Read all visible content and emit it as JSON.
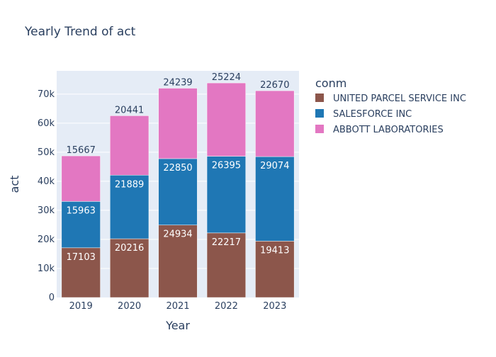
{
  "chart_data": {
    "type": "bar",
    "stacked": true,
    "title": "Yearly Trend of act",
    "xlabel": "Year",
    "ylabel": "act",
    "categories": [
      "2019",
      "2020",
      "2021",
      "2022",
      "2023"
    ],
    "ylim": [
      0,
      78000
    ],
    "yticks": [
      0,
      10000,
      20000,
      30000,
      40000,
      50000,
      60000,
      70000
    ],
    "ytick_labels": [
      "0",
      "10k",
      "20k",
      "30k",
      "40k",
      "50k",
      "60k",
      "70k"
    ],
    "legend_title": "conm",
    "legend_position": "right",
    "grid": true,
    "series": [
      {
        "name": "UNITED PARCEL SERVICE INC",
        "color": "#8c564b",
        "values": [
          17103,
          20216,
          24934,
          22217,
          19413
        ]
      },
      {
        "name": "SALESFORCE INC",
        "color": "#1f77b4",
        "values": [
          15963,
          21889,
          22850,
          26395,
          29074
        ]
      },
      {
        "name": "ABBOTT LABORATORIES",
        "color": "#e377c2",
        "values": [
          15667,
          20441,
          24239,
          25224,
          22670
        ]
      }
    ]
  }
}
